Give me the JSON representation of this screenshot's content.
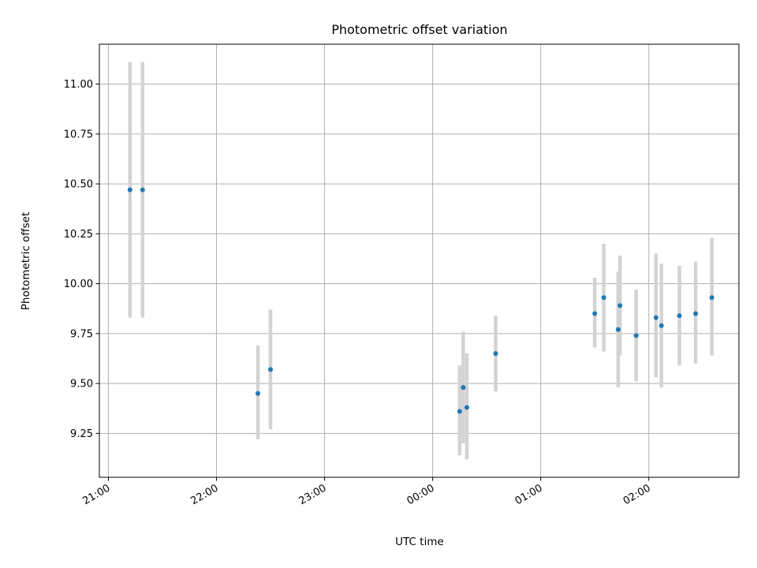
{
  "chart_data": {
    "type": "scatter",
    "title": "Photometric offset variation",
    "xlabel": "UTC time",
    "ylabel": "Photometric offset",
    "x_axis_kind": "time",
    "x_ticks": [
      {
        "t": "21:00",
        "label": "21:00"
      },
      {
        "t": "22:00",
        "label": "22:00"
      },
      {
        "t": "23:00",
        "label": "23:00"
      },
      {
        "t": "24:00",
        "label": "00:00"
      },
      {
        "t": "25:00",
        "label": "01:00"
      },
      {
        "t": "26:00",
        "label": "02:00"
      }
    ],
    "xlim": [
      "20:55",
      "26:50"
    ],
    "ylim": [
      9.03,
      11.2
    ],
    "y_ticks": [
      9.25,
      9.5,
      9.75,
      10.0,
      10.25,
      10.5,
      10.75,
      11.0
    ],
    "grid": true,
    "marker_color": "#1f77b4",
    "errorbar_color": "#d3d3d3",
    "points": [
      {
        "t": "21:12",
        "y": 10.47,
        "low": 9.83,
        "high": 11.11
      },
      {
        "t": "21:19",
        "y": 10.47,
        "low": 9.83,
        "high": 11.11
      },
      {
        "t": "22:23",
        "y": 9.45,
        "low": 9.22,
        "high": 9.69
      },
      {
        "t": "22:30",
        "y": 9.57,
        "low": 9.27,
        "high": 9.87
      },
      {
        "t": "24:15",
        "y": 9.36,
        "low": 9.14,
        "high": 9.59
      },
      {
        "t": "24:17",
        "y": 9.48,
        "low": 9.2,
        "high": 9.76
      },
      {
        "t": "24:19",
        "y": 9.38,
        "low": 9.12,
        "high": 9.65
      },
      {
        "t": "24:35",
        "y": 9.65,
        "low": 9.46,
        "high": 9.84
      },
      {
        "t": "25:30",
        "y": 9.85,
        "low": 9.68,
        "high": 10.03
      },
      {
        "t": "25:35",
        "y": 9.93,
        "low": 9.66,
        "high": 10.2
      },
      {
        "t": "25:43",
        "y": 9.77,
        "low": 9.48,
        "high": 10.06
      },
      {
        "t": "25:44",
        "y": 9.89,
        "low": 9.64,
        "high": 10.14
      },
      {
        "t": "25:53",
        "y": 9.74,
        "low": 9.51,
        "high": 9.97
      },
      {
        "t": "26:04",
        "y": 9.83,
        "low": 9.53,
        "high": 10.15
      },
      {
        "t": "26:07",
        "y": 9.79,
        "low": 9.48,
        "high": 10.1
      },
      {
        "t": "26:17",
        "y": 9.84,
        "low": 9.59,
        "high": 10.09
      },
      {
        "t": "26:26",
        "y": 9.85,
        "low": 9.6,
        "high": 10.11
      },
      {
        "t": "26:35",
        "y": 9.93,
        "low": 9.64,
        "high": 10.23
      }
    ]
  }
}
